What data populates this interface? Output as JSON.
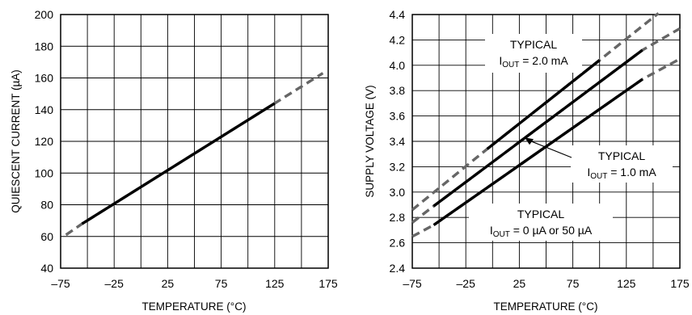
{
  "chart_data": [
    {
      "type": "line",
      "xlabel": "TEMPERATURE (°C)",
      "ylabel": "QUIESCENT CURRENT (µA)",
      "xlim": [
        -75,
        175
      ],
      "ylim": [
        40,
        200
      ],
      "x_ticks": [
        -75,
        -25,
        25,
        75,
        125,
        175
      ],
      "x_tick_labels": [
        "–75",
        "–25",
        "25",
        "75",
        "125",
        "175"
      ],
      "y_ticks": [
        40,
        60,
        80,
        100,
        120,
        140,
        160,
        180,
        200
      ],
      "y_tick_labels": [
        "40",
        "60",
        "80",
        "100",
        "120",
        "140",
        "160",
        "180",
        "200"
      ],
      "x_grid_step": 25,
      "y_grid_step": 20,
      "grid": true,
      "series": [
        {
          "solid": [
            [
              -55,
              68
            ],
            [
              125,
              144
            ]
          ],
          "dashed": [
            [
              -70,
              61
            ],
            [
              -55,
              68
            ],
            [
              125,
              144
            ],
            [
              170,
              163
            ]
          ]
        }
      ],
      "annotations": []
    },
    {
      "type": "line",
      "xlabel": "TEMPERATURE (°C)",
      "ylabel": "SUPPLY VOLTAGE (V)",
      "xlim": [
        -75,
        175
      ],
      "ylim": [
        2.4,
        4.4
      ],
      "x_ticks": [
        -75,
        -25,
        25,
        75,
        125,
        175
      ],
      "x_tick_labels": [
        "–75",
        "–25",
        "25",
        "75",
        "125",
        "175"
      ],
      "y_ticks": [
        2.4,
        2.6,
        2.8,
        3.0,
        3.2,
        3.4,
        3.6,
        3.8,
        4.0,
        4.2,
        4.4
      ],
      "y_tick_labels": [
        "2.4",
        "2.6",
        "2.8",
        "3.0",
        "3.2",
        "3.4",
        "3.6",
        "3.8",
        "4.0",
        "4.2",
        "4.4"
      ],
      "x_grid_step": 25,
      "y_grid_step": 0.2,
      "grid": true,
      "series": [
        {
          "solid": [
            [
              -5,
              3.34
            ],
            [
              100,
              4.04
            ]
          ],
          "dashed": [
            [
              -75,
              2.86
            ],
            [
              -5,
              3.34
            ],
            [
              100,
              4.04
            ],
            [
              155,
              4.41
            ]
          ]
        },
        {
          "solid": [
            [
              -55,
              2.89
            ],
            [
              140,
              4.12
            ]
          ],
          "dashed": [
            [
              -75,
              2.76
            ],
            [
              -55,
              2.89
            ],
            [
              140,
              4.12
            ],
            [
              175,
              4.29
            ]
          ]
        },
        {
          "solid": [
            [
              -55,
              2.74
            ],
            [
              140,
              3.89
            ]
          ],
          "dashed": [
            [
              -75,
              2.65
            ],
            [
              -55,
              2.74
            ],
            [
              140,
              3.89
            ],
            [
              175,
              4.05
            ]
          ]
        }
      ],
      "annotations": [
        {
          "lines": [
            "TYPICAL",
            "I",
            "OUT",
            " = 2.0 mA"
          ]
        },
        {
          "lines": [
            "TYPICAL",
            "I",
            "OUT",
            " = 1.0 mA"
          ]
        },
        {
          "lines": [
            "TYPICAL",
            "I",
            "OUT",
            " = 0 µA or 50 µA"
          ]
        }
      ]
    }
  ]
}
